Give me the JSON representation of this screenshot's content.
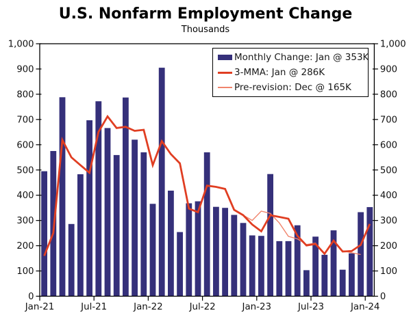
{
  "title": "U.S. Nonfarm Employment Change",
  "subtitle": "Thousands",
  "legend": {
    "position": "top-right",
    "items": [
      {
        "label": "Monthly Change: Jan @ 353K",
        "swatch": "bar",
        "color": "#35307a"
      },
      {
        "label": "3-MMA: Jan @ 286K",
        "swatch": "thick-line",
        "color": "#e03e22"
      },
      {
        "label": "Pre-revision: Dec @ 165K",
        "swatch": "thin-line",
        "color": "#f0846c"
      }
    ]
  },
  "chart_data": {
    "type": "bar",
    "title": "U.S. Nonfarm Employment Change",
    "subtitle": "Thousands",
    "xlabel": "",
    "ylabel": "Thousands",
    "ylim": [
      0,
      1000
    ],
    "ytick_step": 100,
    "ytick_labels": [
      "0",
      "100",
      "200",
      "300",
      "400",
      "500",
      "600",
      "700",
      "800",
      "900",
      "1,000"
    ],
    "grid": false,
    "dual_axis": true,
    "months": [
      "Jan-21",
      "Feb-21",
      "Mar-21",
      "Apr-21",
      "May-21",
      "Jun-21",
      "Jul-21",
      "Aug-21",
      "Sep-21",
      "Oct-21",
      "Nov-21",
      "Dec-21",
      "Jan-22",
      "Feb-22",
      "Mar-22",
      "Apr-22",
      "May-22",
      "Jun-22",
      "Jul-22",
      "Aug-22",
      "Sep-22",
      "Oct-22",
      "Nov-22",
      "Dec-22",
      "Jan-23",
      "Feb-23",
      "Mar-23",
      "Apr-23",
      "May-23",
      "Jun-23",
      "Jul-23",
      "Aug-23",
      "Sep-23",
      "Oct-23",
      "Nov-23",
      "Dec-23",
      "Jan-24"
    ],
    "xtick_indices": [
      0,
      6,
      12,
      18,
      24,
      30,
      36
    ],
    "series": [
      {
        "name": "Monthly Change: Jan @ 353K",
        "type": "bar",
        "color": "#35307a",
        "values": [
          495,
          575,
          788,
          286,
          483,
          697,
          772,
          666,
          559,
          787,
          620,
          570,
          366,
          905,
          418,
          254,
          368,
          376,
          570,
          354,
          350,
          322,
          290,
          241,
          239,
          484,
          218,
          218,
          281,
          103,
          236,
          164,
          261,
          105,
          170,
          333,
          353
        ]
      },
      {
        "name": "3-MMA: Jan @ 286K",
        "type": "line",
        "color": "#e03e22",
        "stroke_width": 2.8,
        "values": [
          160,
          250,
          619,
          550,
          519,
          489,
          651,
          712,
          666,
          671,
          655,
          659,
          519,
          614,
          563,
          526,
          347,
          333,
          438,
          433,
          425,
          342,
          321,
          284,
          257,
          321,
          314,
          307,
          239,
          201,
          207,
          168,
          220,
          177,
          179,
          203,
          286
        ]
      },
      {
        "name": "Pre-revision: Dec @ 165K",
        "type": "line",
        "color": "#f0846c",
        "stroke_width": 1.4,
        "start_index": 22,
        "values": [
          321,
          300,
          337,
          328,
          290,
          237,
          227,
          205,
          210,
          170,
          218,
          180,
          172,
          165
        ]
      }
    ]
  }
}
